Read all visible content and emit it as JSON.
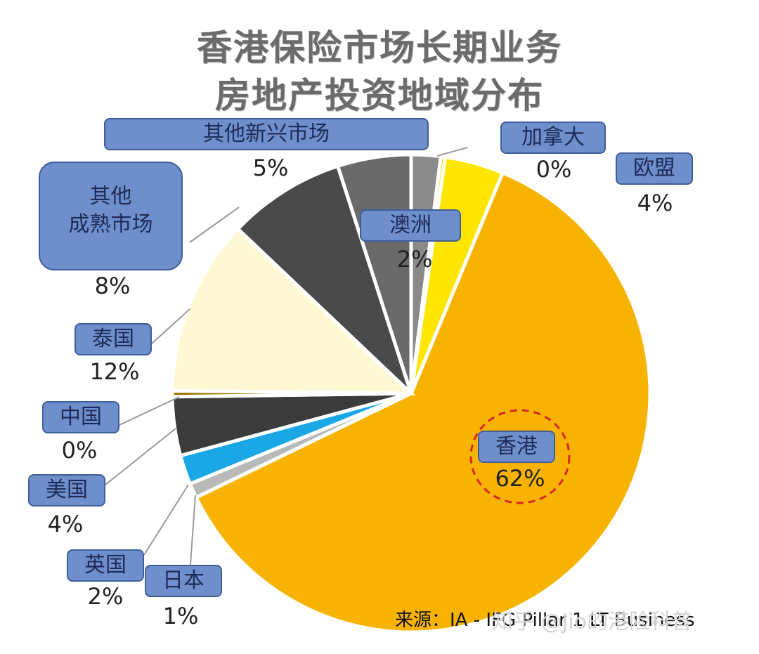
{
  "title": [
    "香港保险市场长期业务",
    "房地产投资地域分布"
  ],
  "chart_data": {
    "type": "pie",
    "slices": [
      {
        "label": "香港",
        "value": 62,
        "display": "62%",
        "color": "#f7b300"
      },
      {
        "label": "日本",
        "value": 1,
        "display": "1%",
        "color": "#b9b9b9"
      },
      {
        "label": "英国",
        "value": 2,
        "display": "2%",
        "color": "#1aa7e6"
      },
      {
        "label": "美国",
        "value": 4,
        "display": "4%",
        "color": "#3b3b3b"
      },
      {
        "label": "中国",
        "value": 0.4,
        "display": "0%",
        "color": "#a07800"
      },
      {
        "label": "泰国",
        "value": 12,
        "display": "12%",
        "color": "#fff8d2"
      },
      {
        "label": "其他成熟市场",
        "value": 8,
        "display": "8%",
        "color": "#4a4a4a"
      },
      {
        "label": "其他新兴市场",
        "value": 5,
        "display": "5%",
        "color": "#6a6a6a"
      },
      {
        "label": "澳洲",
        "value": 2,
        "display": "2%",
        "color": "#8a8a8a"
      },
      {
        "label": "加拿大",
        "value": 0.3,
        "display": "0%",
        "color": "#ffd400"
      },
      {
        "label": "欧盟",
        "value": 4,
        "display": "4%",
        "color": "#ffe600"
      }
    ]
  },
  "labels": {
    "hk": {
      "text": "香港",
      "pct": "62%"
    },
    "jp": {
      "text": "日本",
      "pct": "1%"
    },
    "uk": {
      "text": "英国",
      "pct": "2%"
    },
    "us": {
      "text": "美国",
      "pct": "4%"
    },
    "cn": {
      "text": "中国",
      "pct": "0%"
    },
    "th": {
      "text": "泰国",
      "pct": "12%"
    },
    "odm": {
      "text": "其他\n成熟市场",
      "pct": "8%"
    },
    "oem": {
      "text": "其他新兴市场",
      "pct": "5%"
    },
    "au": {
      "text": "澳洲",
      "pct": "2%"
    },
    "ca": {
      "text": "加拿大",
      "pct": "0%"
    },
    "eu": {
      "text": "欧盟",
      "pct": "4%"
    }
  },
  "source": "来源：IA - IFG Pillar 1 LT Business",
  "watermark": "知乎 @Jio的港险科普"
}
